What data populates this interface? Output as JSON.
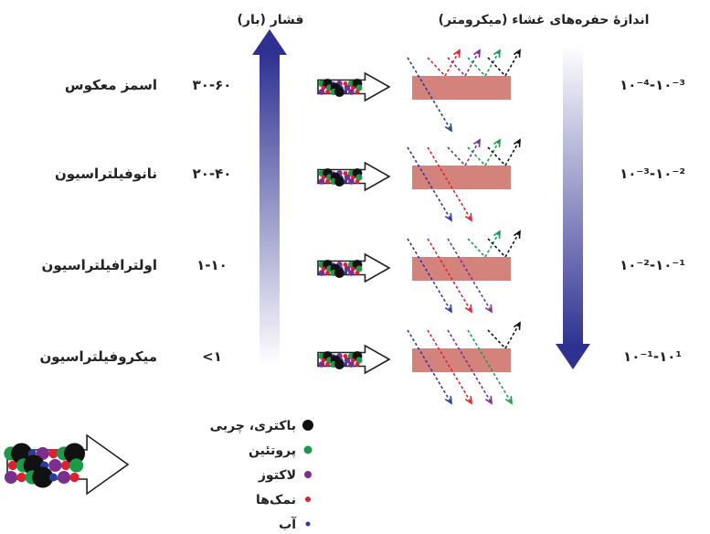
{
  "headers": {
    "pressure": "فشار (بار)",
    "pore_size": "اندازهٔ حفره‌های غشاء (میکرومتر)"
  },
  "rows": [
    {
      "process": "اسمز معکوس",
      "pressure": "۳۰-۶۰",
      "pore_size": "۱۰⁻⁴-۱۰⁻³",
      "passes": [
        "blue"
      ],
      "retained": [
        "red",
        "purple",
        "green",
        "black"
      ]
    },
    {
      "process": "نانوفیلتراسیون",
      "pressure": "۲۰-۴۰",
      "pore_size": "۱۰⁻³-۱۰⁻²",
      "passes": [
        "blue",
        "red"
      ],
      "retained": [
        "purple",
        "green",
        "black"
      ]
    },
    {
      "process": "اولترافیلتراسیون",
      "pressure": "۱-۱۰",
      "pore_size": "۱۰⁻²-۱۰⁻¹",
      "passes": [
        "blue",
        "red",
        "purple"
      ],
      "retained": [
        "green",
        "black"
      ]
    },
    {
      "process": "میکروفیلتراسیون",
      "pressure": "<۱",
      "pore_size": "۱۰⁻¹-۱۰¹",
      "passes": [
        "blue",
        "red",
        "purple",
        "green"
      ],
      "retained": [
        "black"
      ]
    }
  ],
  "legend": [
    {
      "label": "باکتری، چربی",
      "color": "#111111",
      "name": "bacteria-fat"
    },
    {
      "label": "پروتئین",
      "color": "#1a9a4a",
      "name": "protein"
    },
    {
      "label": "لاکتوز",
      "color": "#7b2e8e",
      "name": "lactose"
    },
    {
      "label": "نمک‌ها",
      "color": "#e0202a",
      "name": "salts"
    },
    {
      "label": "آب",
      "color": "#2b3aa0",
      "name": "water"
    }
  ],
  "colors": {
    "membrane": "#d4837c",
    "pressure_arrow": "#2e3192",
    "pore_arrow": "#2e3192",
    "black": "#111111",
    "green": "#1a9a4a",
    "purple": "#7b2e8e",
    "red": "#e0202a",
    "blue": "#2b3aa0"
  }
}
